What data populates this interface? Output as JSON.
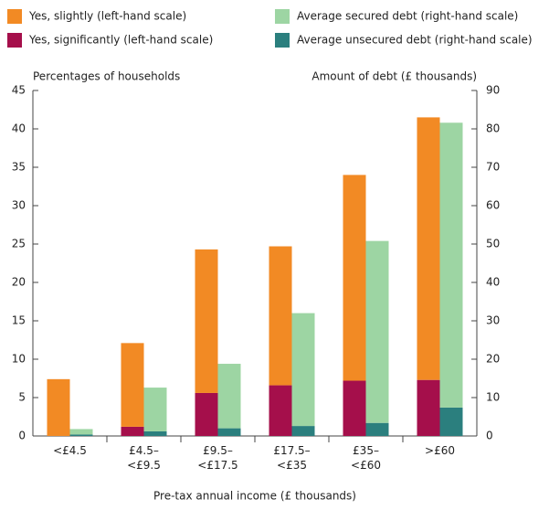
{
  "chart_data": {
    "type": "bar",
    "stacked": true,
    "ylabel": "Percentages of households",
    "y2label": "Amount of debt (£ thousands)",
    "xlabel": "Pre-tax annual income (£ thousands)",
    "categories": [
      "<£4.5",
      "£4.5–\n<£9.5",
      "£9.5–\n<£17.5",
      "£17.5–\n<£35",
      "£35–\n<£60",
      ">£60"
    ],
    "series": [
      {
        "name": "Yes, significantly (left-hand scale)",
        "color": "#a50f4b",
        "axis": "y",
        "values": [
          0,
          1.2,
          5.6,
          6.6,
          7.2,
          7.3
        ]
      },
      {
        "name": "Yes, slightly (left-hand scale)",
        "color": "#f28a24",
        "axis": "y",
        "values": [
          7.4,
          10.9,
          18.7,
          18.1,
          26.8,
          34.2
        ]
      },
      {
        "name": "Average unsecured debt (right-hand scale)",
        "color": "#2b7f7e",
        "axis": "y2",
        "values": [
          0.4,
          1.2,
          2,
          2.6,
          3.4,
          7.4
        ]
      },
      {
        "name": "Average secured debt (right-hand scale)",
        "color": "#9dd5a3",
        "axis": "y2",
        "values": [
          1.4,
          11.4,
          16.8,
          29.4,
          47.4,
          74.2
        ]
      }
    ],
    "legend_order": [
      1,
      3,
      0,
      2
    ],
    "ylim": [
      0,
      45
    ],
    "yticks": [
      0,
      5,
      10,
      15,
      20,
      25,
      30,
      35,
      40,
      45
    ],
    "y2lim": [
      0,
      90
    ],
    "y2ticks": [
      0,
      10,
      20,
      30,
      40,
      50,
      60,
      70,
      80,
      90
    ]
  }
}
